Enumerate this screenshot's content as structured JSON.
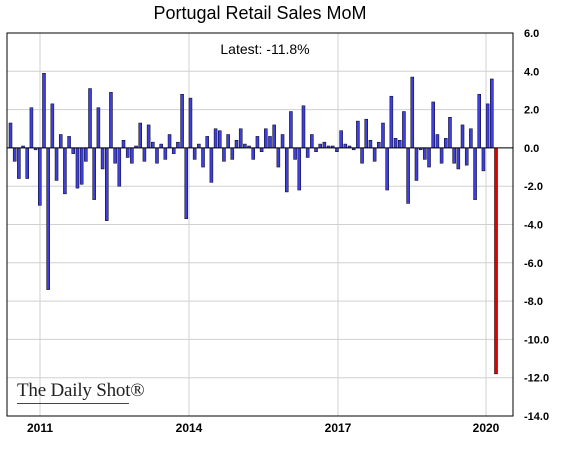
{
  "chart_data": {
    "type": "bar",
    "title": "Portugal Retail Sales MoM",
    "annotation": "Latest:  -11.8%",
    "source": "The Daily Shot®",
    "ylim": [
      -14,
      6
    ],
    "y_ticks": [
      "6.0",
      "4.0",
      "2.0",
      "0.0",
      "-2.0",
      "-4.0",
      "-6.0",
      "-8.0",
      "-10.0",
      "-12.0",
      "-14.0"
    ],
    "x_tick_labels": [
      "2011",
      "2014",
      "2017",
      "2020"
    ],
    "grid": true,
    "colors": {
      "bars": "#3f3fe0",
      "latest": "#e00000",
      "grid": "#d0d0d0",
      "border": "#000000"
    },
    "values": [
      1.3,
      -0.7,
      -1.6,
      0.1,
      -1.6,
      2.1,
      -0.1,
      -3.0,
      3.9,
      -7.4,
      2.3,
      -1.7,
      0.7,
      -2.4,
      0.6,
      -0.3,
      -2.1,
      -1.9,
      -0.7,
      3.1,
      -2.7,
      2.1,
      -1.1,
      -3.8,
      2.9,
      -0.8,
      -2.0,
      0.4,
      -0.5,
      -0.8,
      0.1,
      1.3,
      -0.7,
      1.2,
      0.3,
      -0.8,
      0.2,
      -0.6,
      0.7,
      -0.3,
      0.3,
      2.8,
      -3.7,
      2.6,
      -0.6,
      0.2,
      -1.0,
      0.6,
      -1.8,
      1.0,
      0.9,
      -0.7,
      0.7,
      -0.6,
      0.4,
      1.0,
      0.2,
      0.1,
      -0.6,
      0.6,
      -0.2,
      1.0,
      0.6,
      1.2,
      -1.0,
      0.7,
      -2.3,
      1.9,
      -0.6,
      -2.2,
      2.2,
      -0.5,
      0.7,
      -0.2,
      0.2,
      0.3,
      0.1,
      0.1,
      -0.2,
      0.9,
      0.2,
      0.1,
      -0.1,
      1.4,
      -0.8,
      1.5,
      0.4,
      -0.7,
      0.3,
      1.3,
      -2.2,
      2.7,
      0.5,
      0.4,
      1.9,
      -2.9,
      3.7,
      -1.7,
      -0.1,
      -0.6,
      -1.0,
      2.4,
      0.7,
      -0.8,
      0.5,
      1.6,
      -0.8,
      -1.1,
      1.2,
      -0.9,
      1.0,
      -2.7,
      2.8,
      -1.2,
      2.3,
      3.6,
      -11.8
    ]
  }
}
